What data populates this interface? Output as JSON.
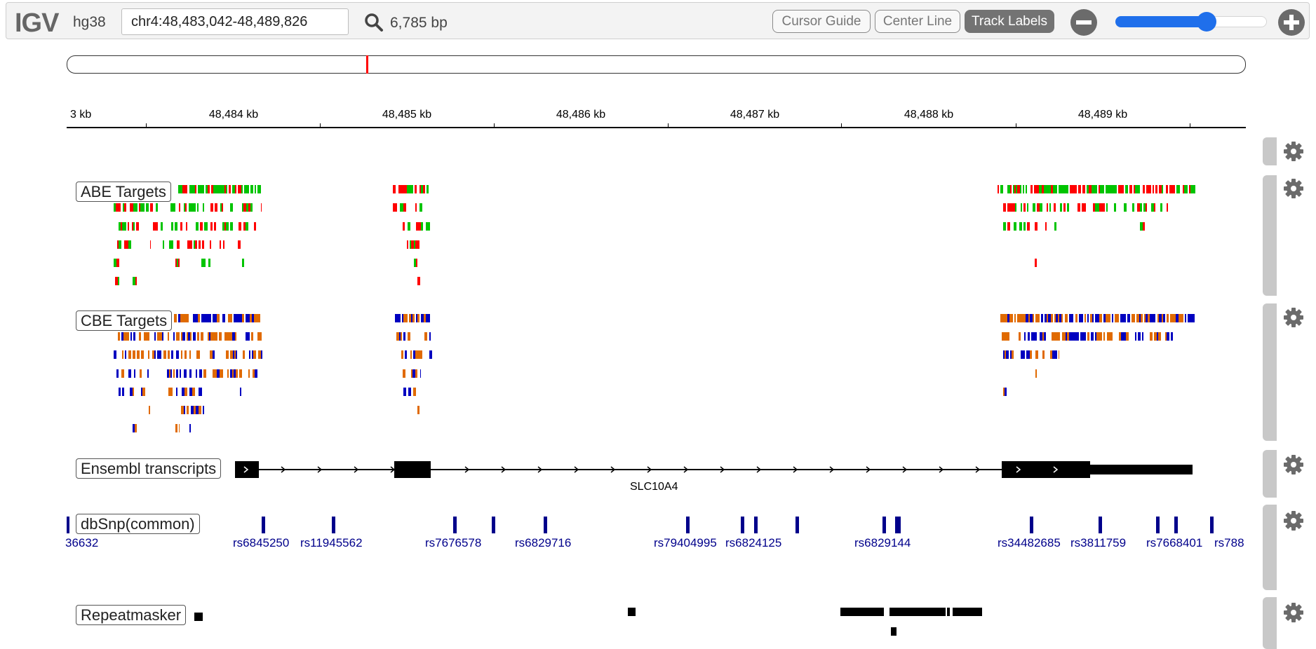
{
  "navbar": {
    "logo": "IGV",
    "genome": "hg38",
    "locus_value": "chr4:48,483,042-48,489,826",
    "bp_count": "6,785 bp",
    "buttons": {
      "cursor_guide": "Cursor Guide",
      "center_line": "Center Line",
      "track_labels": "Track Labels"
    },
    "zoom": {
      "level": 0.6
    }
  },
  "colors": {
    "abe_a": "#ff0000",
    "abe_b": "#00c400",
    "cbe_a": "#0000c0",
    "cbe_b": "#e06a00",
    "snp": "#00008b",
    "feature": "#000000",
    "accent": "#1f6feb"
  },
  "ideogram": {
    "marker_fraction": 0.254
  },
  "ruler": {
    "start_bp": 48483042,
    "end_bp": 48489826,
    "partial_label": "3 kb",
    "labels": [
      "48,484 kb",
      "48,485 kb",
      "48,486 kb",
      "48,487 kb",
      "48,488 kb",
      "48,489 kb"
    ]
  },
  "tracks": {
    "abe": {
      "name": "ABE Targets"
    },
    "cbe": {
      "name": "CBE Targets"
    },
    "ensembl": {
      "name": "Ensembl transcripts",
      "gene": "SLC10A4"
    },
    "dbsnp": {
      "name": "dbSnp(common)",
      "labels": [
        "36632",
        "rs6845250",
        "rs11945562",
        "rs7676578",
        "rs6829716",
        "rs79404995",
        "rs6824125",
        "rs6829144",
        "rs34482685",
        "rs3811759",
        "rs7668401",
        "rs788"
      ]
    },
    "repeatmasker": {
      "name": "Repeatmasker"
    }
  }
}
